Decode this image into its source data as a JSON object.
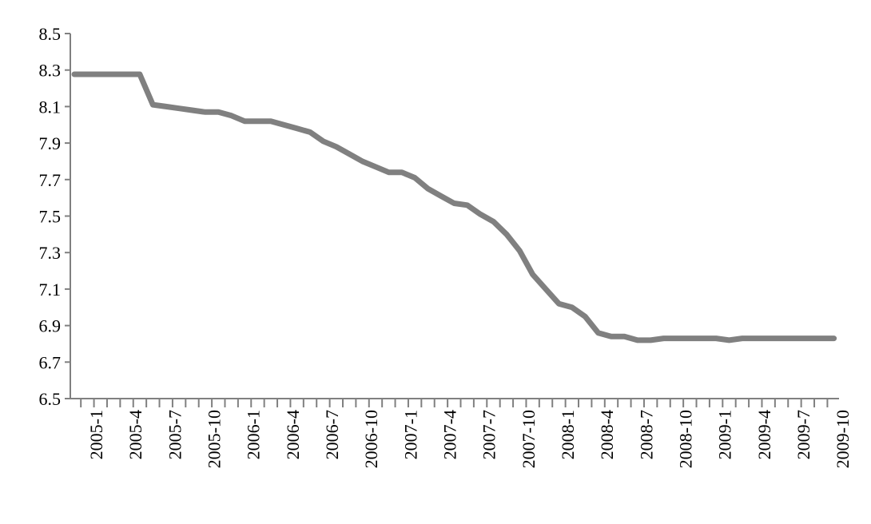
{
  "chart_data": {
    "type": "line",
    "title": "",
    "xlabel": "",
    "ylabel": "",
    "ylim": [
      6.5,
      8.5
    ],
    "yticks": [
      "6.5",
      "6.7",
      "6.9",
      "7.1",
      "7.3",
      "7.5",
      "7.7",
      "7.9",
      "8.1",
      "8.3",
      "8.5"
    ],
    "grid": false,
    "legend": "none",
    "line_color": "#808080",
    "x_tick_labels": [
      "2005-1",
      "2005-4",
      "2005-7",
      "2005-10",
      "2006-1",
      "2006-4",
      "2006-7",
      "2006-10",
      "2007-1",
      "2007-4",
      "2007-7",
      "2007-10",
      "2008-1",
      "2008-4",
      "2008-7",
      "2008-10",
      "2009-1",
      "2009-4",
      "2009-7",
      "2009-10"
    ],
    "x": [
      "2005-1",
      "2005-2",
      "2005-3",
      "2005-4",
      "2005-5",
      "2005-6",
      "2005-7",
      "2005-8",
      "2005-9",
      "2005-10",
      "2005-11",
      "2005-12",
      "2006-1",
      "2006-2",
      "2006-3",
      "2006-4",
      "2006-5",
      "2006-6",
      "2006-7",
      "2006-8",
      "2006-9",
      "2006-10",
      "2006-11",
      "2006-12",
      "2007-1",
      "2007-2",
      "2007-3",
      "2007-4",
      "2007-5",
      "2007-6",
      "2007-7",
      "2007-8",
      "2007-9",
      "2007-10",
      "2007-11",
      "2007-12",
      "2008-1",
      "2008-2",
      "2008-3",
      "2008-4",
      "2008-5",
      "2008-6",
      "2008-7",
      "2008-8",
      "2008-9",
      "2008-10",
      "2008-11",
      "2008-12",
      "2009-1",
      "2009-2",
      "2009-3",
      "2009-4",
      "2009-5",
      "2009-6",
      "2009-7",
      "2009-8",
      "2009-9",
      "2009-10",
      "2009-11"
    ],
    "series": [
      {
        "values": [
          8.277,
          8.277,
          8.277,
          8.277,
          8.277,
          8.277,
          8.11,
          8.1,
          8.09,
          8.08,
          8.07,
          8.07,
          8.05,
          8.02,
          8.02,
          8.02,
          8.0,
          7.98,
          7.96,
          7.91,
          7.88,
          7.84,
          7.8,
          7.77,
          7.74,
          7.74,
          7.71,
          7.65,
          7.61,
          7.57,
          7.56,
          7.51,
          7.47,
          7.4,
          7.31,
          7.18,
          7.1,
          7.02,
          7.0,
          6.95,
          6.86,
          6.84,
          6.84,
          6.82,
          6.82,
          6.83,
          6.83,
          6.83,
          6.83,
          6.83,
          6.82,
          6.83,
          6.83,
          6.83,
          6.83,
          6.83,
          6.83,
          6.83,
          6.83
        ]
      }
    ]
  }
}
